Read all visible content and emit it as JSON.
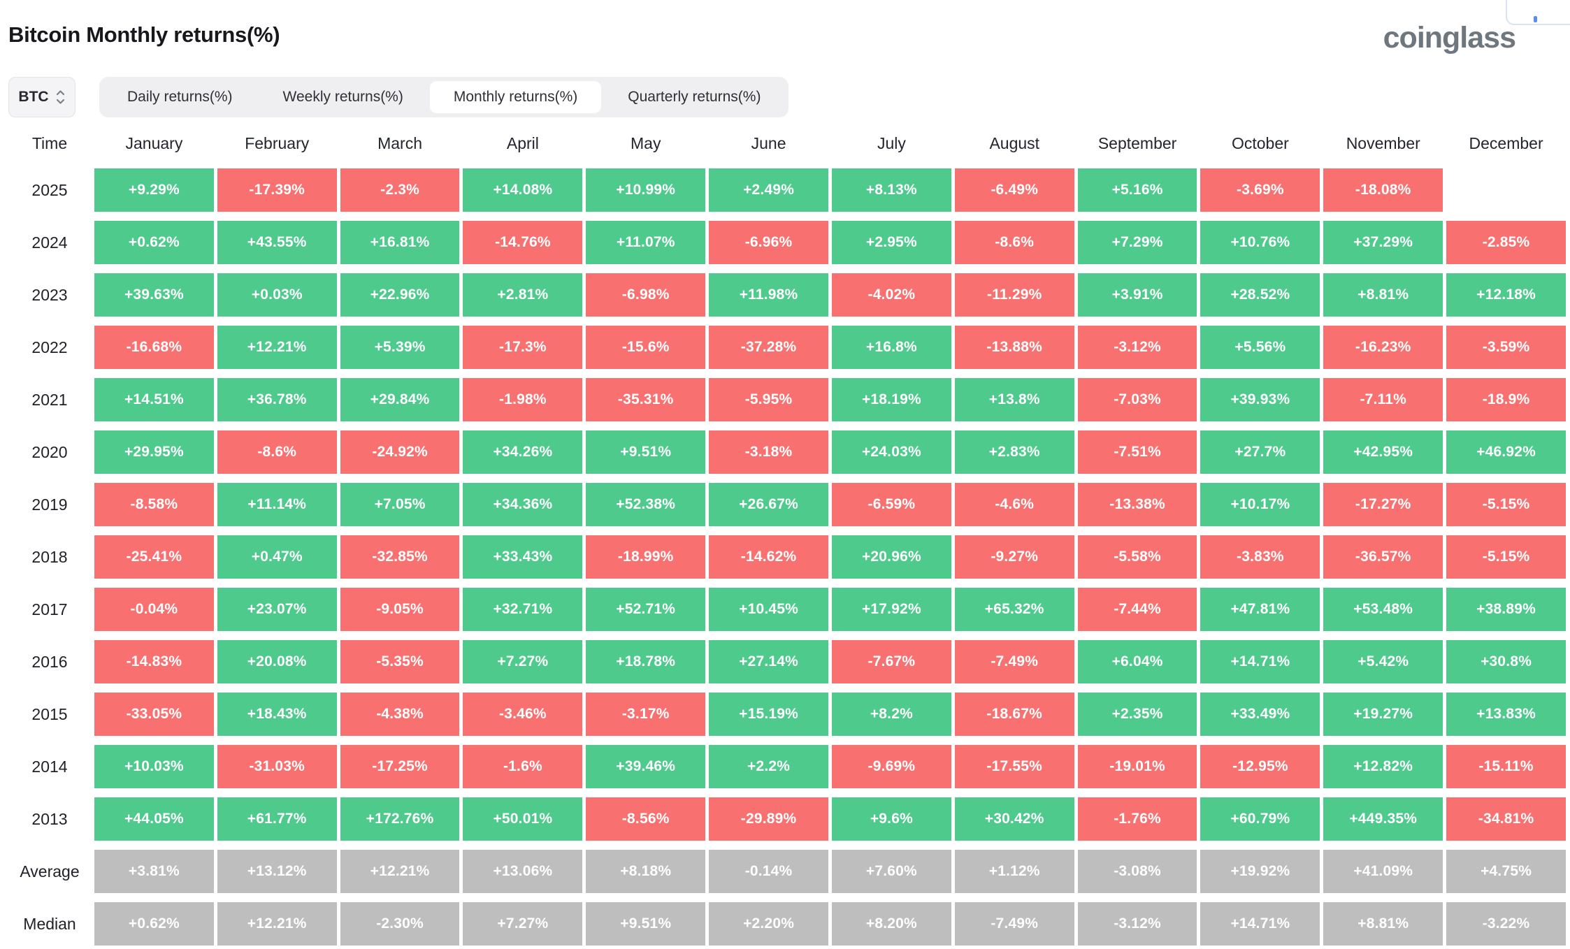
{
  "page": {
    "title": "Bitcoin Monthly returns(%)",
    "logo": "coinglass"
  },
  "controls": {
    "symbol_selector": {
      "value": "BTC"
    },
    "tabs": [
      {
        "label": "Daily returns(%)",
        "active": false
      },
      {
        "label": "Weekly returns(%)",
        "active": false
      },
      {
        "label": "Monthly returns(%)",
        "active": true
      },
      {
        "label": "Quarterly returns(%)",
        "active": false
      }
    ]
  },
  "colors": {
    "positive": "#4dca8c",
    "negative": "#f97070",
    "neutral": "#bebebe"
  },
  "chart_data": {
    "type": "heatmap",
    "title": "Bitcoin Monthly returns(%)",
    "columns": [
      "Time",
      "January",
      "February",
      "March",
      "April",
      "May",
      "June",
      "July",
      "August",
      "September",
      "October",
      "November",
      "December"
    ],
    "rows": [
      {
        "label": "2025",
        "values": [
          "+9.29%",
          "-17.39%",
          "-2.3%",
          "+14.08%",
          "+10.99%",
          "+2.49%",
          "+8.13%",
          "-6.49%",
          "+5.16%",
          "-3.69%",
          "-18.08%",
          null
        ]
      },
      {
        "label": "2024",
        "values": [
          "+0.62%",
          "+43.55%",
          "+16.81%",
          "-14.76%",
          "+11.07%",
          "-6.96%",
          "+2.95%",
          "-8.6%",
          "+7.29%",
          "+10.76%",
          "+37.29%",
          "-2.85%"
        ]
      },
      {
        "label": "2023",
        "values": [
          "+39.63%",
          "+0.03%",
          "+22.96%",
          "+2.81%",
          "-6.98%",
          "+11.98%",
          "-4.02%",
          "-11.29%",
          "+3.91%",
          "+28.52%",
          "+8.81%",
          "+12.18%"
        ]
      },
      {
        "label": "2022",
        "values": [
          "-16.68%",
          "+12.21%",
          "+5.39%",
          "-17.3%",
          "-15.6%",
          "-37.28%",
          "+16.8%",
          "-13.88%",
          "-3.12%",
          "+5.56%",
          "-16.23%",
          "-3.59%"
        ]
      },
      {
        "label": "2021",
        "values": [
          "+14.51%",
          "+36.78%",
          "+29.84%",
          "-1.98%",
          "-35.31%",
          "-5.95%",
          "+18.19%",
          "+13.8%",
          "-7.03%",
          "+39.93%",
          "-7.11%",
          "-18.9%"
        ]
      },
      {
        "label": "2020",
        "values": [
          "+29.95%",
          "-8.6%",
          "-24.92%",
          "+34.26%",
          "+9.51%",
          "-3.18%",
          "+24.03%",
          "+2.83%",
          "-7.51%",
          "+27.7%",
          "+42.95%",
          "+46.92%"
        ]
      },
      {
        "label": "2019",
        "values": [
          "-8.58%",
          "+11.14%",
          "+7.05%",
          "+34.36%",
          "+52.38%",
          "+26.67%",
          "-6.59%",
          "-4.6%",
          "-13.38%",
          "+10.17%",
          "-17.27%",
          "-5.15%"
        ]
      },
      {
        "label": "2018",
        "values": [
          "-25.41%",
          "+0.47%",
          "-32.85%",
          "+33.43%",
          "-18.99%",
          "-14.62%",
          "+20.96%",
          "-9.27%",
          "-5.58%",
          "-3.83%",
          "-36.57%",
          "-5.15%"
        ]
      },
      {
        "label": "2017",
        "values": [
          "-0.04%",
          "+23.07%",
          "-9.05%",
          "+32.71%",
          "+52.71%",
          "+10.45%",
          "+17.92%",
          "+65.32%",
          "-7.44%",
          "+47.81%",
          "+53.48%",
          "+38.89%"
        ]
      },
      {
        "label": "2016",
        "values": [
          "-14.83%",
          "+20.08%",
          "-5.35%",
          "+7.27%",
          "+18.78%",
          "+27.14%",
          "-7.67%",
          "-7.49%",
          "+6.04%",
          "+14.71%",
          "+5.42%",
          "+30.8%"
        ]
      },
      {
        "label": "2015",
        "values": [
          "-33.05%",
          "+18.43%",
          "-4.38%",
          "-3.46%",
          "-3.17%",
          "+15.19%",
          "+8.2%",
          "-18.67%",
          "+2.35%",
          "+33.49%",
          "+19.27%",
          "+13.83%"
        ]
      },
      {
        "label": "2014",
        "values": [
          "+10.03%",
          "-31.03%",
          "-17.25%",
          "-1.6%",
          "+39.46%",
          "+2.2%",
          "-9.69%",
          "-17.55%",
          "-19.01%",
          "-12.95%",
          "+12.82%",
          "-15.11%"
        ]
      },
      {
        "label": "2013",
        "values": [
          "+44.05%",
          "+61.77%",
          "+172.76%",
          "+50.01%",
          "-8.56%",
          "-29.89%",
          "+9.6%",
          "+30.42%",
          "-1.76%",
          "+60.79%",
          "+449.35%",
          "-34.81%"
        ]
      }
    ],
    "summary_rows": [
      {
        "label": "Average",
        "values": [
          "+3.81%",
          "+13.12%",
          "+12.21%",
          "+13.06%",
          "+8.18%",
          "-0.14%",
          "+7.60%",
          "+1.12%",
          "-3.08%",
          "+19.92%",
          "+41.09%",
          "+4.75%"
        ]
      },
      {
        "label": "Median",
        "values": [
          "+0.62%",
          "+12.21%",
          "-2.30%",
          "+7.27%",
          "+9.51%",
          "+2.20%",
          "+8.20%",
          "-7.49%",
          "-3.12%",
          "+14.71%",
          "+8.81%",
          "-3.22%"
        ]
      }
    ],
    "legend": "green = positive monthly return, red = negative monthly return, gray = Average/Median summary rows",
    "cell_color_rule": "sign of value: '+' -> colors.positive, '-' -> colors.negative; summary rows -> colors.neutral; null -> empty cell"
  }
}
